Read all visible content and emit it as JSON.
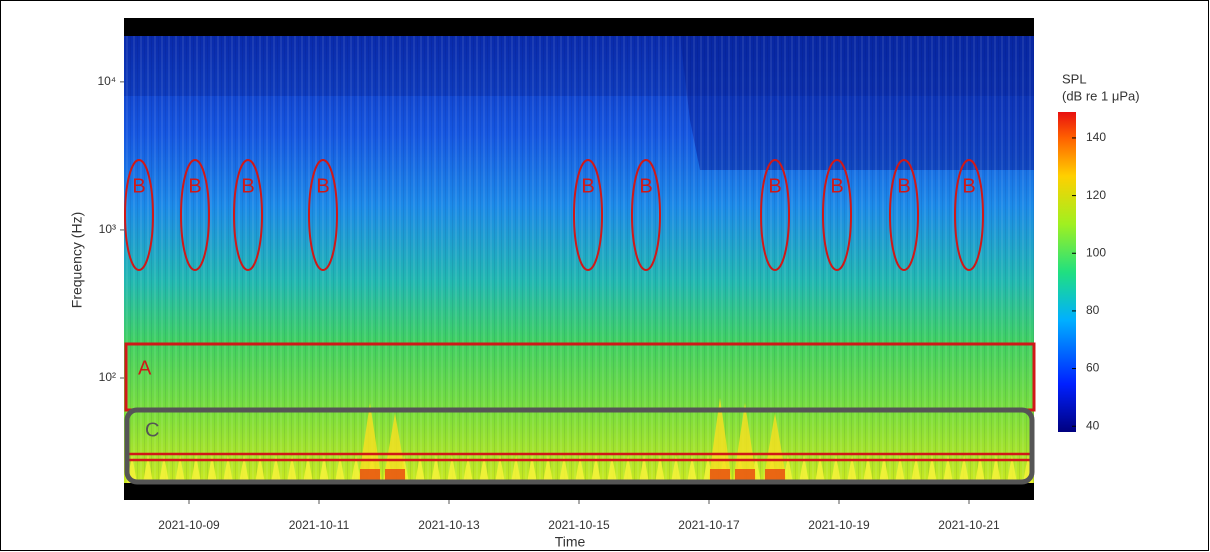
{
  "chart_data": {
    "type": "spectrogram",
    "x_label": "Time",
    "y_label": "Frequency (Hz)",
    "xlim": [
      "2021-10-08",
      "2021-10-22"
    ],
    "xticks": [
      "2021-10-09",
      "2021-10-11",
      "2021-10-13",
      "2021-10-15",
      "2021-10-17",
      "2021-10-19",
      "2021-10-21"
    ],
    "ylim": [
      15,
      27000
    ],
    "log_y": true,
    "yticks": [
      {
        "value": 100,
        "label": "10²"
      },
      {
        "value": 1000,
        "label": "10³"
      },
      {
        "value": 10000,
        "label": "10⁴"
      }
    ],
    "colorbar": {
      "title": "SPL",
      "unit": "(dB re 1 μPa)",
      "lim": [
        38,
        149
      ],
      "ticks": [
        40,
        60,
        80,
        100,
        120,
        140
      ],
      "colormap": "jet"
    },
    "annotations": [
      {
        "label": "A"
      },
      {
        "label": "B"
      },
      {
        "label": "B"
      },
      {
        "label": "B"
      },
      {
        "label": "B"
      },
      {
        "label": "B"
      },
      {
        "label": "B"
      },
      {
        "label": "B"
      },
      {
        "label": "B"
      },
      {
        "label": "B"
      },
      {
        "label": "B"
      },
      {
        "label": "C"
      }
    ]
  }
}
